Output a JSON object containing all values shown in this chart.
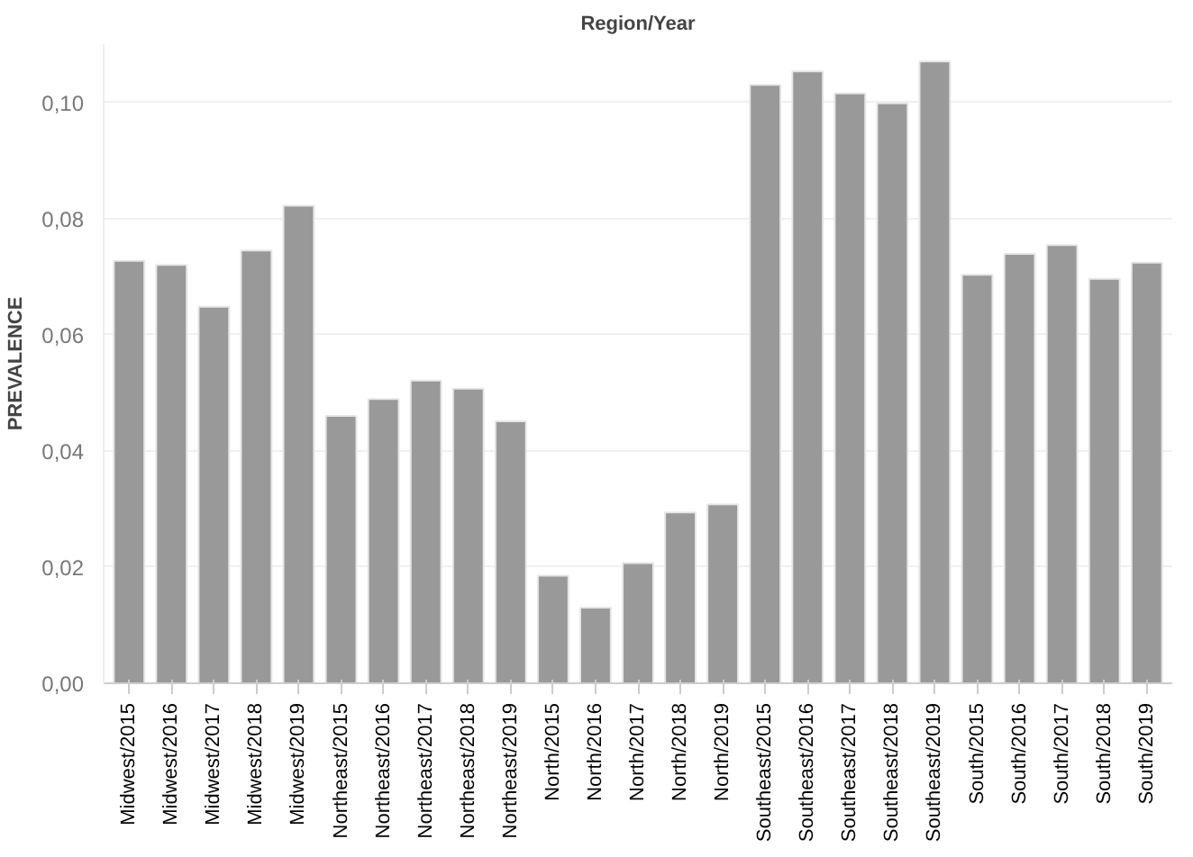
{
  "chart_data": {
    "type": "bar",
    "title": "Region/Year",
    "ylabel": "PREVALENCE",
    "categories": [
      "Midwest/2015",
      "Midwest/2016",
      "Midwest/2017",
      "Midwest/2018",
      "Midwest/2019",
      "Northeast/2015",
      "Northeast/2016",
      "Northeast/2017",
      "Northeast/2018",
      "Northeast/2019",
      "North/2015",
      "North/2016",
      "North/2017",
      "North/2018",
      "North/2019",
      "Southeast/2015",
      "Southeast/2016",
      "Southeast/2017",
      "Southeast/2018",
      "Southeast/2019",
      "South/2015",
      "South/2016",
      "South/2017",
      "South/2018",
      "South/2019"
    ],
    "values": [
      0.0727,
      0.072,
      0.0648,
      0.0745,
      0.0822,
      0.046,
      0.0489,
      0.0521,
      0.0507,
      0.0451,
      0.0185,
      0.013,
      0.0207,
      0.0294,
      0.0308,
      0.103,
      0.1053,
      0.1015,
      0.0998,
      0.107,
      0.0703,
      0.0739,
      0.0754,
      0.0696,
      0.0724
    ],
    "color": "#999999",
    "ylim": [
      0,
      0.11
    ],
    "yticks": [
      {
        "value": 0,
        "label": "0,00"
      },
      {
        "value": 0.02,
        "label": "0,02"
      },
      {
        "value": 0.04,
        "label": "0,04"
      },
      {
        "value": 0.06,
        "label": "0,06"
      },
      {
        "value": 0.08,
        "label": "0,08"
      },
      {
        "value": 0.1,
        "label": "0,10"
      }
    ],
    "grid": "y"
  }
}
